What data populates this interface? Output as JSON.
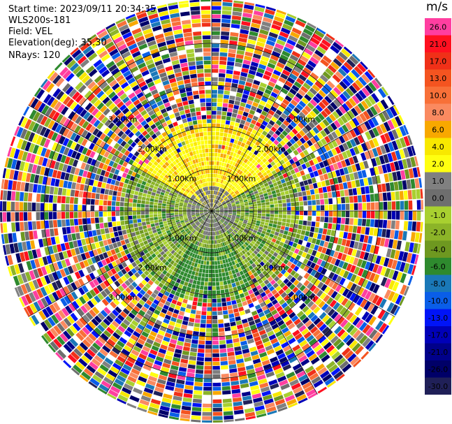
{
  "header": {
    "start_time": "Start time: 2023/09/11 20:34:35",
    "instrument": "WLS200s-181",
    "field": "Field: VEL",
    "elevation": "Elevation(deg): 35.30",
    "nrays": "NRays: 120"
  },
  "colorbar": {
    "unit": "m/s",
    "levels": [
      {
        "label": "26.0",
        "color": "#ff3ea0"
      },
      {
        "label": "21.0",
        "color": "#ff1020"
      },
      {
        "label": "17.0",
        "color": "#f03018"
      },
      {
        "label": "13.0",
        "color": "#f45420"
      },
      {
        "label": "10.0",
        "color": "#f87038"
      },
      {
        "label": "8.0",
        "color": "#fa8a60"
      },
      {
        "label": "6.0",
        "color": "#f8a800"
      },
      {
        "label": "4.0",
        "color": "#f8e800"
      },
      {
        "label": "2.0",
        "color": "#ffff10"
      },
      {
        "label": "1.0",
        "color": "#808080"
      },
      {
        "label": "0.0",
        "color": "#6e6e6e"
      },
      {
        "label": "-1.0",
        "color": "#a8d030"
      },
      {
        "label": "-2.0",
        "color": "#8cb428"
      },
      {
        "label": "-4.0",
        "color": "#6e9820"
      },
      {
        "label": "-6.0",
        "color": "#2e8a2e"
      },
      {
        "label": "-8.0",
        "color": "#1a78b8"
      },
      {
        "label": "-10.0",
        "color": "#0a5ee8"
      },
      {
        "label": "-13.0",
        "color": "#0014f8"
      },
      {
        "label": "-17.0",
        "color": "#0000b8"
      },
      {
        "label": "-21.0",
        "color": "#00008a"
      },
      {
        "label": "-26.0",
        "color": "#000068"
      },
      {
        "label": "-30.0",
        "color": "#202058"
      }
    ]
  },
  "chart_data": {
    "type": "heatmap",
    "projection": "polar PPI",
    "field": "VEL",
    "rays": 120,
    "range_rings_km": [
      1,
      2,
      3
    ],
    "ring_labels": [
      "1.00km",
      "2.00km",
      "3.00km"
    ],
    "sectors": [
      {
        "azimuth_deg": [
          300,
          60
        ],
        "range_km": [
          0.6,
          2.2
        ],
        "velocity_ms": 2.0,
        "note": "positive (yellow)"
      },
      {
        "azimuth_deg": [
          60,
          300
        ],
        "range_km": [
          0.6,
          2.2
        ],
        "velocity_ms": -4.0,
        "note": "negative (green)"
      },
      {
        "azimuth_deg": [
          0,
          360
        ],
        "range_km": [
          0.0,
          0.6
        ],
        "velocity_ms": 0.0,
        "note": "near zero (gray)"
      },
      {
        "azimuth_deg": [
          0,
          360
        ],
        "range_km": [
          2.4,
          3.6
        ],
        "velocity_ms": null,
        "note": "noise"
      }
    ]
  }
}
